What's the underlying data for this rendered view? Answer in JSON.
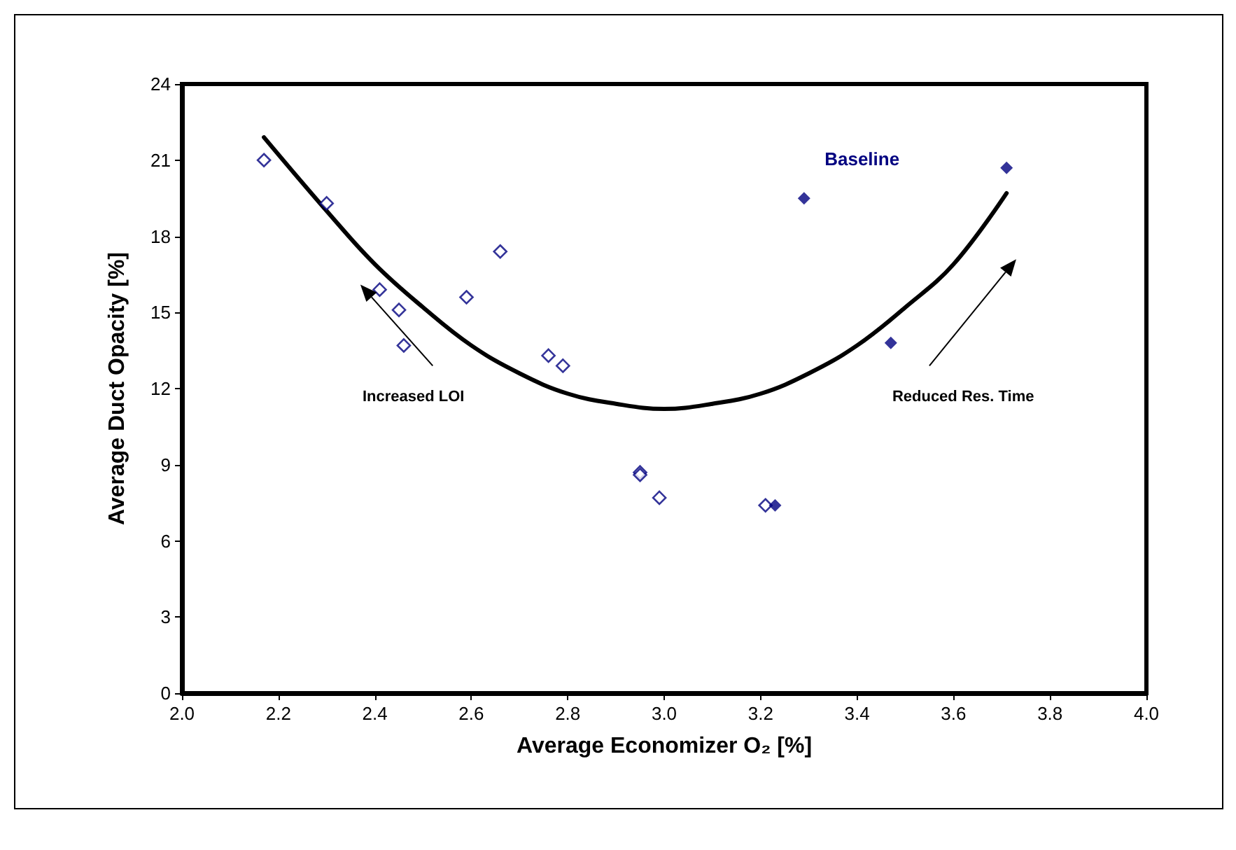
{
  "chart_data": {
    "type": "scatter",
    "xlabel": "Average Economizer O₂ [%]",
    "ylabel": "Average Duct Opacity [%]",
    "xlim": [
      2.0,
      4.0
    ],
    "xticks": [
      {
        "value": 2.0,
        "label": "2.0"
      },
      {
        "value": 2.2,
        "label": "2.2"
      },
      {
        "value": 2.4,
        "label": "2.4"
      },
      {
        "value": 2.6,
        "label": "2.6"
      },
      {
        "value": 2.8,
        "label": "2.8"
      },
      {
        "value": 3.0,
        "label": "3.0"
      },
      {
        "value": 3.2,
        "label": "3.2"
      },
      {
        "value": 3.4,
        "label": "3.4"
      },
      {
        "value": 3.6,
        "label": "3.6"
      },
      {
        "value": 3.8,
        "label": "3.8"
      },
      {
        "value": 4.0,
        "label": "4.0"
      }
    ],
    "ylim": [
      0,
      24
    ],
    "yticks": [
      0,
      3,
      6,
      9,
      12,
      15,
      18,
      21,
      24
    ],
    "grid": false,
    "legend": false,
    "marker": "diamond",
    "annotations": [
      "Increased LOI",
      "Reduced Res. Time"
    ],
    "series": [
      {
        "color": "#000080",
        "x": [
          2.17,
          2.3,
          2.41,
          2.45,
          2.46,
          2.59,
          2.66,
          2.76,
          2.79,
          2.95,
          2.95,
          2.99,
          3.21
        ],
        "values": [
          21.0,
          19.3,
          15.9,
          15.1,
          13.7,
          15.6,
          17.4,
          13.3,
          12.9,
          8.7,
          8.6,
          7.7,
          7.4
        ]
      },
      {
        "name": "Baseline",
        "color": "#000080",
        "x": [
          3.23,
          3.29,
          3.47,
          3.71
        ],
        "values": [
          7.4,
          19.5,
          13.8,
          20.7
        ]
      },
      {
        "type": "line",
        "color": "#000000",
        "marker": "none",
        "x": [
          2.17,
          2.3,
          2.4,
          2.5,
          2.6,
          2.7,
          2.8,
          2.9,
          3.0,
          3.1,
          3.2,
          3.3,
          3.4,
          3.5,
          3.6,
          3.71
        ],
        "values": [
          21.9,
          19.0,
          16.9,
          15.2,
          13.7,
          12.6,
          11.8,
          11.4,
          11.2,
          11.4,
          11.8,
          12.6,
          13.7,
          15.2,
          16.9,
          19.7
        ]
      }
    ]
  }
}
